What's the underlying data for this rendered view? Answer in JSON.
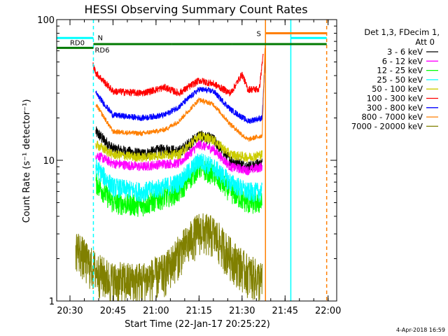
{
  "chart_data": {
    "type": "line",
    "title": "HESSI Observing Summary Count Rates",
    "xlabel": "Start Time (22-Jan-17 20:25:22)",
    "ylabel": "Count Rate (s⁻¹ detector⁻¹)",
    "y_scale": "log",
    "ylim": [
      1,
      100
    ],
    "y_ticks": [
      1,
      10,
      100
    ],
    "y_tick_labels": [
      "1",
      "10",
      "100"
    ],
    "xlim": [
      "20:25:22",
      "22:03:00"
    ],
    "x_ticks": [
      "20:30",
      "20:45",
      "21:00",
      "21:15",
      "21:30",
      "21:45",
      "22:00"
    ],
    "legend_position": "right",
    "legend_header": [
      "Det 1,3, FDecim 1,",
      "Att 0"
    ],
    "timestamp": "4-Apr-2018 16:59",
    "series": [
      {
        "name": "3 - 6 keV",
        "color": "#000000",
        "noise": 0.1,
        "points": [
          [
            "20:39:00",
            16
          ],
          [
            "20:45:00",
            12
          ],
          [
            "20:55:00",
            11
          ],
          [
            "21:03:00",
            12
          ],
          [
            "21:08:00",
            11.5
          ],
          [
            "21:15:00",
            15
          ],
          [
            "21:20:00",
            14
          ],
          [
            "21:26:00",
            10
          ],
          [
            "21:32:00",
            9
          ],
          [
            "21:37:00",
            9.5
          ]
        ]
      },
      {
        "name": "6 - 12 keV",
        "color": "#ff00ff",
        "noise": 0.08,
        "points": [
          [
            "20:39:00",
            11
          ],
          [
            "20:45:00",
            9.5
          ],
          [
            "20:55:00",
            9
          ],
          [
            "21:03:00",
            9.5
          ],
          [
            "21:08:00",
            9.5
          ],
          [
            "21:15:00",
            13
          ],
          [
            "21:20:00",
            12
          ],
          [
            "21:26:00",
            9
          ],
          [
            "21:32:00",
            8.5
          ],
          [
            "21:37:00",
            9
          ]
        ]
      },
      {
        "name": "12 - 25 keV",
        "color": "#00ff00",
        "noise": 0.18,
        "points": [
          [
            "20:39:00",
            7
          ],
          [
            "20:45:00",
            5
          ],
          [
            "20:55:00",
            4.8
          ],
          [
            "21:03:00",
            5.5
          ],
          [
            "21:08:00",
            6
          ],
          [
            "21:15:00",
            9
          ],
          [
            "21:20:00",
            8
          ],
          [
            "21:26:00",
            6
          ],
          [
            "21:32:00",
            5
          ],
          [
            "21:37:00",
            5
          ]
        ]
      },
      {
        "name": "25 - 50 keV",
        "color": "#00ffff",
        "noise": 0.16,
        "points": [
          [
            "20:39:00",
            9
          ],
          [
            "20:45:00",
            6.5
          ],
          [
            "20:55:00",
            6
          ],
          [
            "21:03:00",
            6.5
          ],
          [
            "21:08:00",
            7
          ],
          [
            "21:15:00",
            10
          ],
          [
            "21:20:00",
            9
          ],
          [
            "21:26:00",
            7
          ],
          [
            "21:32:00",
            6
          ],
          [
            "21:37:00",
            6
          ]
        ]
      },
      {
        "name": "50 - 100 keV",
        "color": "#cccc00",
        "noise": 0.08,
        "points": [
          [
            "20:39:00",
            13
          ],
          [
            "20:45:00",
            11
          ],
          [
            "20:55:00",
            10.5
          ],
          [
            "21:03:00",
            11
          ],
          [
            "21:08:00",
            11
          ],
          [
            "21:15:00",
            15
          ],
          [
            "21:20:00",
            14
          ],
          [
            "21:26:00",
            11
          ],
          [
            "21:32:00",
            10.5
          ],
          [
            "21:37:00",
            11
          ]
        ]
      },
      {
        "name": "100 - 300 keV",
        "color": "#ff0000",
        "noise": 0.06,
        "points": [
          [
            "20:38:00",
            48
          ],
          [
            "20:39:00",
            42
          ],
          [
            "20:45:00",
            31
          ],
          [
            "20:55:00",
            30
          ],
          [
            "21:03:00",
            33
          ],
          [
            "21:08:00",
            30
          ],
          [
            "21:15:00",
            37
          ],
          [
            "21:20:00",
            35
          ],
          [
            "21:26:00",
            30
          ],
          [
            "21:30:00",
            41
          ],
          [
            "21:32:00",
            32
          ],
          [
            "21:36:00",
            32
          ],
          [
            "21:37:30",
            60
          ]
        ]
      },
      {
        "name": "300 - 800 keV",
        "color": "#0000ff",
        "noise": 0.05,
        "points": [
          [
            "20:39:00",
            30
          ],
          [
            "20:45:00",
            21
          ],
          [
            "20:55:00",
            20
          ],
          [
            "21:03:00",
            21
          ],
          [
            "21:08:00",
            24
          ],
          [
            "21:15:00",
            32
          ],
          [
            "21:20:00",
            31
          ],
          [
            "21:26:00",
            23
          ],
          [
            "21:32:00",
            19
          ],
          [
            "21:37:00",
            20
          ],
          [
            "21:38:00",
            50
          ]
        ]
      },
      {
        "name": "800 - 7000 keV",
        "color": "#ff7f00",
        "noise": 0.04,
        "points": [
          [
            "20:39:00",
            25
          ],
          [
            "20:45:00",
            16
          ],
          [
            "20:55:00",
            15.5
          ],
          [
            "21:03:00",
            16.5
          ],
          [
            "21:08:00",
            19
          ],
          [
            "21:15:00",
            27
          ],
          [
            "21:20:00",
            25
          ],
          [
            "21:26:00",
            18
          ],
          [
            "21:32:00",
            14
          ],
          [
            "21:37:00",
            15
          ],
          [
            "21:38:00",
            62
          ]
        ]
      },
      {
        "name": "7000 - 20000 keV",
        "color": "#808000",
        "noise": 0.35,
        "points": [
          [
            "20:32:00",
            2.5
          ],
          [
            "20:36:00",
            1.9
          ],
          [
            "20:40:00",
            1.6
          ],
          [
            "20:45:00",
            1.4
          ],
          [
            "20:55:00",
            1.4
          ],
          [
            "21:03:00",
            1.6
          ],
          [
            "21:08:00",
            2.2
          ],
          [
            "21:15:00",
            3.2
          ],
          [
            "21:20:00",
            3.0
          ],
          [
            "21:26:00",
            2.1
          ],
          [
            "21:32:00",
            1.6
          ],
          [
            "21:37:00",
            1.4
          ]
        ]
      }
    ],
    "flags": [
      {
        "label": "",
        "color": "#00ffff",
        "segments": [
          [
            "20:25:22",
            "20:38:10"
          ],
          [
            "21:47:00",
            "21:59:30"
          ]
        ],
        "level": 74
      },
      {
        "label": "N",
        "color": "#00ffff",
        "segments": [],
        "level": 74
      },
      {
        "label": "RD0",
        "color": "#007a00",
        "segments": [
          [
            "20:25:22",
            "20:38:10"
          ]
        ],
        "level": 63
      },
      {
        "label": "RD6",
        "color": "#007a00",
        "segments": [
          [
            "20:38:10",
            "21:05:30"
          ],
          [
            "21:05:30",
            "21:26:30"
          ],
          [
            "21:26:30",
            "21:59:30"
          ]
        ],
        "level": 67
      },
      {
        "label": "S",
        "color": "#ff7f00",
        "segments": [
          [
            "21:38:10",
            "21:59:30"
          ]
        ],
        "level": 80
      }
    ],
    "vertical_markers": [
      {
        "time": "20:38:10",
        "color": "#00ffff",
        "style": "dashed"
      },
      {
        "time": "21:38:10",
        "color": "#ff7f00",
        "style": "solid"
      },
      {
        "time": "21:47:00",
        "color": "#00ffff",
        "style": "solid"
      },
      {
        "time": "21:59:30",
        "color": "#ff7f00",
        "style": "dashed"
      }
    ],
    "flag_labels": {
      "n_time": "20:38:10",
      "s_time": "21:37:00",
      "rd0_time": "20:30:00",
      "rd6_time": "20:38:10"
    }
  }
}
